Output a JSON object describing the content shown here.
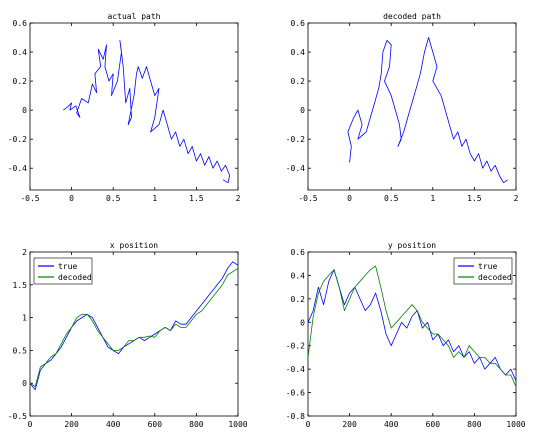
{
  "chart_data": [
    {
      "type": "line",
      "title": "actual path",
      "xlabel": "",
      "ylabel": "",
      "xlim": [
        -0.5,
        2
      ],
      "ylim": [
        -0.55,
        0.6
      ],
      "xticks": [
        -0.5,
        0,
        0.5,
        1,
        1.5,
        2
      ],
      "yticks": [
        -0.4,
        -0.2,
        0,
        0.2,
        0.4,
        0.6
      ],
      "xtick_labels": [
        "-0.5",
        "0",
        "0.5",
        "1",
        "1.5",
        "2"
      ],
      "ytick_labels": [
        "-0.4",
        "-0.2",
        "0",
        "0.2",
        "0.4",
        "0.6"
      ],
      "grid": false,
      "legend": null,
      "series": [
        {
          "color": "#0000ff",
          "points": [
            [
              -0.1,
              0.0
            ],
            [
              -0.05,
              0.02
            ],
            [
              0.0,
              0.05
            ],
            [
              -0.02,
              0.0
            ],
            [
              0.05,
              0.03
            ],
            [
              0.1,
              -0.05
            ],
            [
              0.06,
              -0.02
            ],
            [
              0.12,
              0.08
            ],
            [
              0.2,
              0.05
            ],
            [
              0.25,
              0.18
            ],
            [
              0.3,
              0.12
            ],
            [
              0.28,
              0.25
            ],
            [
              0.35,
              0.3
            ],
            [
              0.32,
              0.42
            ],
            [
              0.38,
              0.35
            ],
            [
              0.42,
              0.45
            ],
            [
              0.4,
              0.3
            ],
            [
              0.45,
              0.2
            ],
            [
              0.5,
              0.25
            ],
            [
              0.48,
              0.1
            ],
            [
              0.55,
              0.2
            ],
            [
              0.6,
              0.4
            ],
            [
              0.58,
              0.48
            ],
            [
              0.62,
              0.3
            ],
            [
              0.65,
              0.05
            ],
            [
              0.7,
              0.15
            ],
            [
              0.72,
              -0.05
            ],
            [
              0.68,
              -0.1
            ],
            [
              0.75,
              0.1
            ],
            [
              0.78,
              0.25
            ],
            [
              0.8,
              0.3
            ],
            [
              0.85,
              0.22
            ],
            [
              0.9,
              0.3
            ],
            [
              0.95,
              0.2
            ],
            [
              1.0,
              0.1
            ],
            [
              1.05,
              0.15
            ],
            [
              1.0,
              -0.05
            ],
            [
              0.95,
              -0.15
            ],
            [
              1.05,
              -0.1
            ],
            [
              1.1,
              0.0
            ],
            [
              1.15,
              -0.1
            ],
            [
              1.2,
              -0.2
            ],
            [
              1.25,
              -0.15
            ],
            [
              1.3,
              -0.25
            ],
            [
              1.35,
              -0.2
            ],
            [
              1.4,
              -0.3
            ],
            [
              1.45,
              -0.25
            ],
            [
              1.5,
              -0.35
            ],
            [
              1.55,
              -0.3
            ],
            [
              1.6,
              -0.38
            ],
            [
              1.65,
              -0.32
            ],
            [
              1.7,
              -0.4
            ],
            [
              1.75,
              -0.35
            ],
            [
              1.8,
              -0.42
            ],
            [
              1.85,
              -0.38
            ],
            [
              1.9,
              -0.45
            ],
            [
              1.88,
              -0.5
            ],
            [
              1.82,
              -0.48
            ]
          ]
        }
      ]
    },
    {
      "type": "line",
      "title": "decoded path",
      "xlabel": "",
      "ylabel": "",
      "xlim": [
        -0.5,
        2
      ],
      "ylim": [
        -0.55,
        0.6
      ],
      "xticks": [
        -0.5,
        0,
        0.5,
        1,
        1.5,
        2
      ],
      "yticks": [
        -0.4,
        -0.2,
        0,
        0.2,
        0.4,
        0.6
      ],
      "xtick_labels": [
        "-0.5",
        "0",
        "0.5",
        "1",
        "1.5",
        "2"
      ],
      "ytick_labels": [
        "-0.4",
        "-0.2",
        "0",
        "0.2",
        "0.4",
        "0.6"
      ],
      "grid": false,
      "legend": null,
      "series": [
        {
          "color": "#0000ff",
          "points": [
            [
              0.0,
              -0.36
            ],
            [
              0.02,
              -0.25
            ],
            [
              -0.02,
              -0.15
            ],
            [
              0.05,
              -0.05
            ],
            [
              0.1,
              0.0
            ],
            [
              0.15,
              -0.1
            ],
            [
              0.1,
              -0.2
            ],
            [
              0.2,
              -0.15
            ],
            [
              0.25,
              -0.05
            ],
            [
              0.3,
              0.05
            ],
            [
              0.35,
              0.15
            ],
            [
              0.38,
              0.25
            ],
            [
              0.4,
              0.4
            ],
            [
              0.45,
              0.48
            ],
            [
              0.5,
              0.45
            ],
            [
              0.48,
              0.3
            ],
            [
              0.42,
              0.2
            ],
            [
              0.5,
              0.1
            ],
            [
              0.55,
              0.0
            ],
            [
              0.6,
              -0.1
            ],
            [
              0.62,
              -0.2
            ],
            [
              0.58,
              -0.25
            ],
            [
              0.65,
              -0.15
            ],
            [
              0.7,
              -0.05
            ],
            [
              0.75,
              0.05
            ],
            [
              0.8,
              0.15
            ],
            [
              0.85,
              0.25
            ],
            [
              0.9,
              0.4
            ],
            [
              0.95,
              0.5
            ],
            [
              1.0,
              0.4
            ],
            [
              1.05,
              0.3
            ],
            [
              1.0,
              0.2
            ],
            [
              1.1,
              0.1
            ],
            [
              1.15,
              0.0
            ],
            [
              1.2,
              -0.1
            ],
            [
              1.25,
              -0.2
            ],
            [
              1.3,
              -0.15
            ],
            [
              1.35,
              -0.25
            ],
            [
              1.4,
              -0.2
            ],
            [
              1.45,
              -0.3
            ],
            [
              1.5,
              -0.35
            ],
            [
              1.55,
              -0.3
            ],
            [
              1.6,
              -0.4
            ],
            [
              1.65,
              -0.35
            ],
            [
              1.7,
              -0.42
            ],
            [
              1.75,
              -0.38
            ],
            [
              1.8,
              -0.45
            ],
            [
              1.85,
              -0.5
            ],
            [
              1.9,
              -0.48
            ]
          ]
        }
      ]
    },
    {
      "type": "line",
      "title": "x position",
      "xlabel": "",
      "ylabel": "",
      "xlim": [
        0,
        1000
      ],
      "ylim": [
        -0.5,
        2
      ],
      "xticks": [
        0,
        200,
        400,
        600,
        800,
        1000
      ],
      "yticks": [
        -0.5,
        0,
        0.5,
        1,
        1.5,
        2
      ],
      "xtick_labels": [
        "0",
        "200",
        "400",
        "600",
        "800",
        "1000"
      ],
      "ytick_labels": [
        "-0.5",
        "0",
        "0.5",
        "1",
        "1.5",
        "2"
      ],
      "grid": false,
      "legend": "top-left",
      "series": [
        {
          "name": "true",
          "color": "#0000ff",
          "x": [
            0,
            25,
            50,
            75,
            100,
            125,
            150,
            175,
            200,
            225,
            250,
            275,
            300,
            325,
            350,
            375,
            400,
            425,
            450,
            475,
            500,
            525,
            550,
            575,
            600,
            625,
            650,
            675,
            700,
            725,
            750,
            775,
            800,
            825,
            850,
            875,
            900,
            925,
            950,
            975,
            1000
          ],
          "y": [
            0.0,
            -0.1,
            0.2,
            0.3,
            0.35,
            0.45,
            0.55,
            0.7,
            0.85,
            0.95,
            1.0,
            1.05,
            1.0,
            0.85,
            0.7,
            0.55,
            0.5,
            0.45,
            0.55,
            0.6,
            0.65,
            0.7,
            0.65,
            0.7,
            0.75,
            0.8,
            0.85,
            0.8,
            0.95,
            0.9,
            0.9,
            1.0,
            1.1,
            1.2,
            1.3,
            1.4,
            1.5,
            1.6,
            1.75,
            1.85,
            1.8
          ]
        },
        {
          "name": "decoded",
          "color": "#008000",
          "x": [
            0,
            25,
            50,
            75,
            100,
            125,
            150,
            175,
            200,
            225,
            250,
            275,
            300,
            325,
            350,
            375,
            400,
            425,
            450,
            475,
            500,
            525,
            550,
            575,
            600,
            625,
            650,
            675,
            700,
            725,
            750,
            775,
            800,
            825,
            850,
            875,
            900,
            925,
            950,
            975,
            1000
          ],
          "y": [
            0.0,
            -0.05,
            0.25,
            0.3,
            0.4,
            0.45,
            0.6,
            0.75,
            0.85,
            1.0,
            1.05,
            1.05,
            0.95,
            0.8,
            0.7,
            0.6,
            0.5,
            0.5,
            0.55,
            0.65,
            0.65,
            0.7,
            0.7,
            0.72,
            0.7,
            0.8,
            0.85,
            0.8,
            0.9,
            0.85,
            0.85,
            0.95,
            1.05,
            1.1,
            1.2,
            1.3,
            1.4,
            1.5,
            1.65,
            1.7,
            1.75
          ]
        }
      ]
    },
    {
      "type": "line",
      "title": "y position",
      "xlabel": "",
      "ylabel": "",
      "xlim": [
        0,
        1000
      ],
      "ylim": [
        -0.8,
        0.6
      ],
      "xticks": [
        0,
        200,
        400,
        600,
        800,
        1000
      ],
      "yticks": [
        -0.8,
        -0.6,
        -0.4,
        -0.2,
        0,
        0.2,
        0.4,
        0.6
      ],
      "xtick_labels": [
        "0",
        "200",
        "400",
        "600",
        "800",
        "1000"
      ],
      "ytick_labels": [
        "-0.8",
        "-0.6",
        "-0.4",
        "-0.2",
        "0",
        "0.2",
        "0.4",
        "0.6"
      ],
      "grid": false,
      "legend": "top-right",
      "series": [
        {
          "name": "true",
          "color": "#0000ff",
          "x": [
            0,
            25,
            50,
            75,
            100,
            125,
            150,
            175,
            200,
            225,
            250,
            275,
            300,
            325,
            350,
            375,
            400,
            425,
            450,
            475,
            500,
            525,
            550,
            575,
            600,
            625,
            650,
            675,
            700,
            725,
            750,
            775,
            800,
            825,
            850,
            875,
            900,
            925,
            950,
            975,
            1000
          ],
          "y": [
            0.0,
            0.1,
            0.3,
            0.15,
            0.35,
            0.45,
            0.3,
            0.15,
            0.25,
            0.3,
            0.2,
            0.1,
            0.15,
            0.25,
            0.1,
            -0.1,
            -0.2,
            -0.1,
            0.0,
            -0.05,
            0.05,
            0.1,
            -0.05,
            0.0,
            -0.15,
            -0.1,
            -0.2,
            -0.15,
            -0.25,
            -0.2,
            -0.3,
            -0.25,
            -0.35,
            -0.3,
            -0.4,
            -0.35,
            -0.3,
            -0.4,
            -0.45,
            -0.4,
            -0.5
          ]
        },
        {
          "name": "decoded",
          "color": "#008000",
          "x": [
            0,
            25,
            50,
            75,
            100,
            125,
            150,
            175,
            200,
            225,
            250,
            275,
            300,
            325,
            350,
            375,
            400,
            425,
            450,
            475,
            500,
            525,
            550,
            575,
            600,
            625,
            650,
            675,
            700,
            725,
            750,
            775,
            800,
            825,
            850,
            875,
            900,
            925,
            950,
            975,
            1000
          ],
          "y": [
            -0.3,
            0.05,
            0.25,
            0.35,
            0.4,
            0.45,
            0.3,
            0.1,
            0.2,
            0.3,
            0.35,
            0.4,
            0.45,
            0.48,
            0.3,
            0.1,
            -0.05,
            0.0,
            0.05,
            0.1,
            0.15,
            0.1,
            0.0,
            -0.05,
            -0.1,
            -0.1,
            -0.15,
            -0.2,
            -0.3,
            -0.25,
            -0.3,
            -0.2,
            -0.25,
            -0.3,
            -0.3,
            -0.35,
            -0.35,
            -0.4,
            -0.45,
            -0.45,
            -0.55
          ]
        }
      ]
    }
  ]
}
